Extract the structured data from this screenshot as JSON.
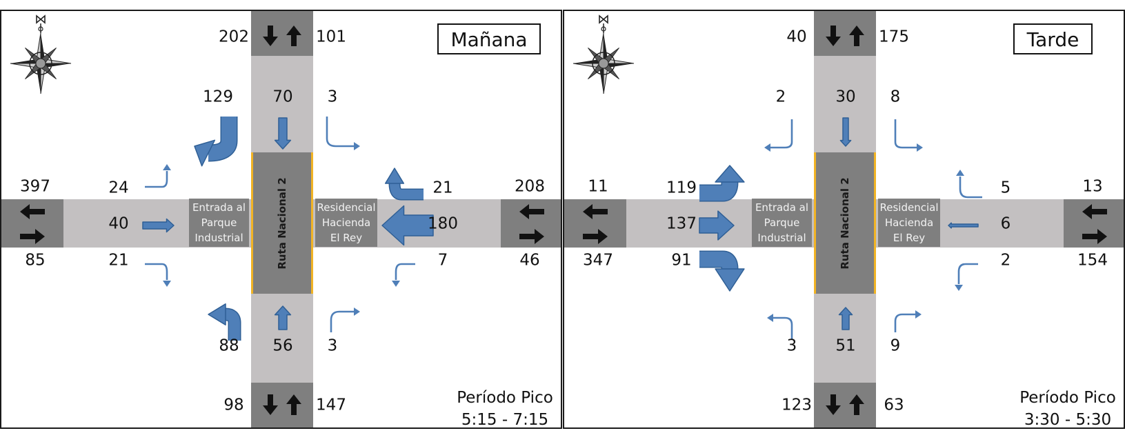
{
  "panels": [
    {
      "title": "Mañana",
      "center_road": "Ruta Nacional 2",
      "west_street": [
        "Entrada al",
        "Parque",
        "Industrial"
      ],
      "east_street": [
        "Residencial",
        "Hacienda",
        "El Rey"
      ],
      "period_label": "Período Pico",
      "period_time": "5:15 - 7:15",
      "totals": {
        "north_in": "202",
        "north_out": "101",
        "south_in": "98",
        "south_out": "147",
        "west_top": "397",
        "west_bottom": "85",
        "east_top": "208",
        "east_bottom": "46"
      },
      "movements": {
        "sb_right": "129",
        "sb_through": "70",
        "sb_left": "3",
        "eb_left": "24",
        "eb_through": "40",
        "eb_right": "21",
        "wb_right": "21",
        "wb_through": "180",
        "wb_left": "7",
        "nb_left": "88",
        "nb_through": "56",
        "nb_right": "3"
      }
    },
    {
      "title": "Tarde",
      "center_road": "Ruta Nacional 2",
      "west_street": [
        "Entrada al",
        "Parque",
        "Industrial"
      ],
      "east_street": [
        "Residencial",
        "Hacienda",
        "El Rey"
      ],
      "period_label": "Período Pico",
      "period_time": "3:30 - 5:30",
      "totals": {
        "north_in": "40",
        "north_out": "175",
        "south_in": "123",
        "south_out": "63",
        "west_top": "11",
        "west_bottom": "347",
        "east_top": "13",
        "east_bottom": "154"
      },
      "movements": {
        "sb_right": "2",
        "sb_through": "30",
        "sb_left": "8",
        "eb_left": "119",
        "eb_through": "137",
        "eb_right": "91",
        "wb_right": "5",
        "wb_through": "6",
        "wb_left": "2",
        "nb_left": "3",
        "nb_through": "51",
        "nb_right": "9"
      }
    }
  ],
  "colors": {
    "arrow_fill": "#4f7fb8",
    "arrow_stroke": "#2f5f95",
    "road": "#c3c0c1",
    "road_dark": "#7f7f7f",
    "curb": "#f1b324"
  },
  "icons": {
    "compass": "compass-rose-icon",
    "direction": "two-way-arrows-icon"
  }
}
